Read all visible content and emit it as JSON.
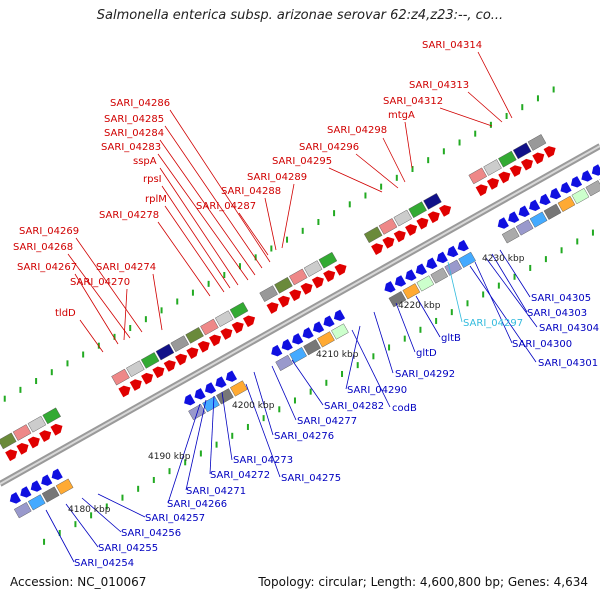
{
  "title": "Salmonella enterica subsp. arizonae serovar 62:z4,z23:--, co...",
  "accession": "Accession: NC_010067",
  "topology": "Topology: circular; Length: 4,600,800 bp; Genes: 4,634",
  "colors": {
    "backbone": "#888888",
    "forward_gene": "#e00000",
    "reverse_gene": "#1010e0",
    "forward_label": "#d00000",
    "reverse_label": "#0000c0",
    "other_label": "#33bbdd",
    "tick": "#22aa22"
  },
  "scale_labels": [
    "4180 kbp",
    "4190 kbp",
    "4200 kbp",
    "4210 kbp",
    "4220 kbp",
    "4230 kbp"
  ],
  "forward_labels": [
    "SARI_04314",
    "SARI_04313",
    "SARI_04312",
    "mtgA",
    "SARI_04298",
    "SARI_04296",
    "SARI_04295",
    "SARI_04289",
    "SARI_04288",
    "SARI_04287",
    "SARI_04286",
    "SARI_04285",
    "SARI_04284",
    "SARI_04283",
    "sspA",
    "rpsI",
    "rplM",
    "SARI_04278",
    "SARI_04269",
    "SARI_04268",
    "SARI_04267",
    "SARI_04274",
    "SARI_04270",
    "tldD"
  ],
  "reverse_labels": [
    "SARI_04305",
    "SARI_04303",
    "SARI_04304",
    "SARI_04300",
    "SARI_04301",
    "gltB",
    "gltD",
    "SARI_04292",
    "SARI_04290",
    "codB",
    "SARI_04282",
    "SARI_04277",
    "SARI_04276",
    "SARI_04273",
    "SARI_04272",
    "SARI_04275",
    "SARI_04271",
    "SARI_04266",
    "SARI_04257",
    "SARI_04256",
    "SARI_04255",
    "SARI_04254"
  ],
  "other_labels": [
    "SARI_04297"
  ]
}
